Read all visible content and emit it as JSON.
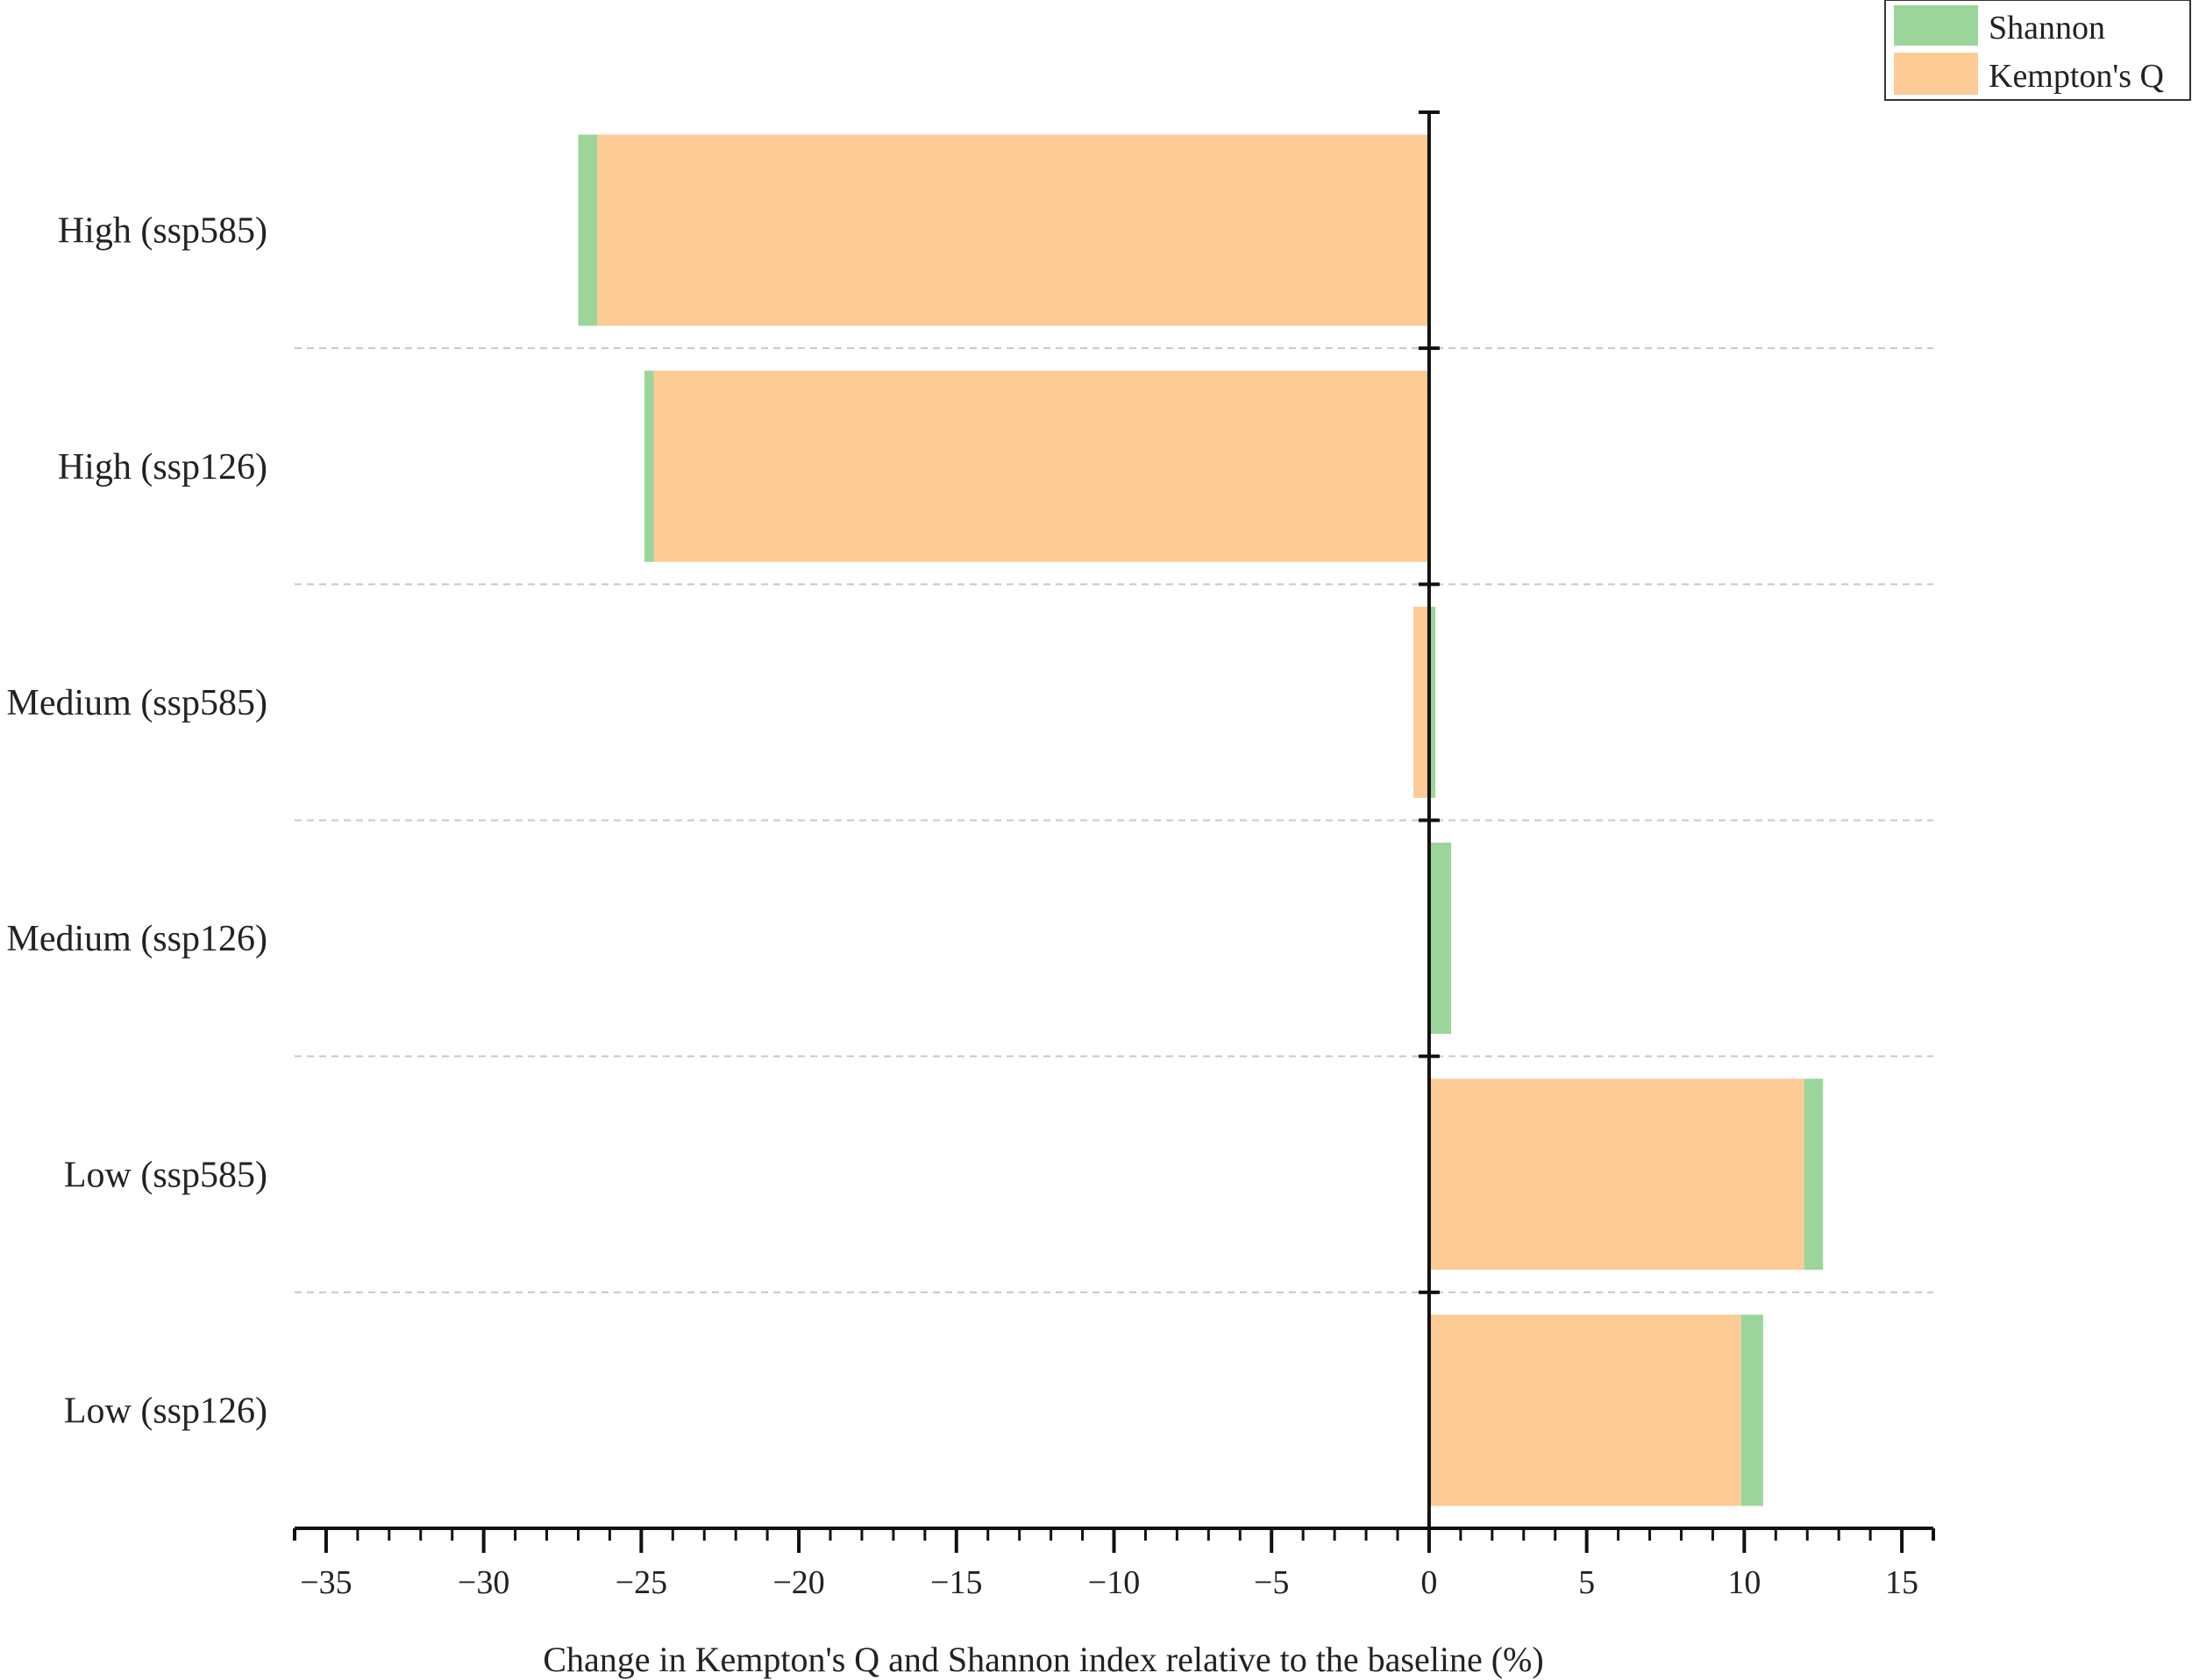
{
  "chart_data": {
    "type": "bar",
    "orientation": "horizontal",
    "stacked": true,
    "categories": [
      "High (ssp585)",
      "High (ssp126)",
      "Medium (ssp585)",
      "Medium (ssp126)",
      "Low (ssp585)",
      "Low (ssp126)"
    ],
    "series": [
      {
        "name": "Kempton's Q",
        "values": [
          -26.4,
          -24.6,
          -0.5,
          0.0,
          11.9,
          9.9
        ],
        "color": "#FDCB95"
      },
      {
        "name": "Shannon",
        "values": [
          -0.6,
          -0.3,
          0.2,
          0.7,
          0.6,
          0.7
        ],
        "color": "#9BD59A"
      }
    ],
    "xlabel": "Change in Kempton's Q and Shannon index relative to the baseline (%)",
    "ylabel": "",
    "title": "",
    "xlim": [
      -36,
      16
    ],
    "xticks": [
      -35,
      -30,
      -25,
      -20,
      -15,
      -10,
      -5,
      0,
      5,
      10,
      15
    ],
    "xtick_labels": [
      "−35",
      "−30",
      "−25",
      "−20",
      "−15",
      "−10",
      "−5",
      "0",
      "5",
      "10",
      "15"
    ],
    "minor_tick_step": 1,
    "grid": "horizontal dashed separators between categories",
    "legend": {
      "position": "top-right",
      "entries": [
        {
          "label": "Shannon",
          "color": "#9BD59A"
        },
        {
          "label": "Kempton's Q",
          "color": "#FDCB95"
        }
      ]
    },
    "axis_color": "#111111",
    "grid_color": "#c8c8c8"
  }
}
